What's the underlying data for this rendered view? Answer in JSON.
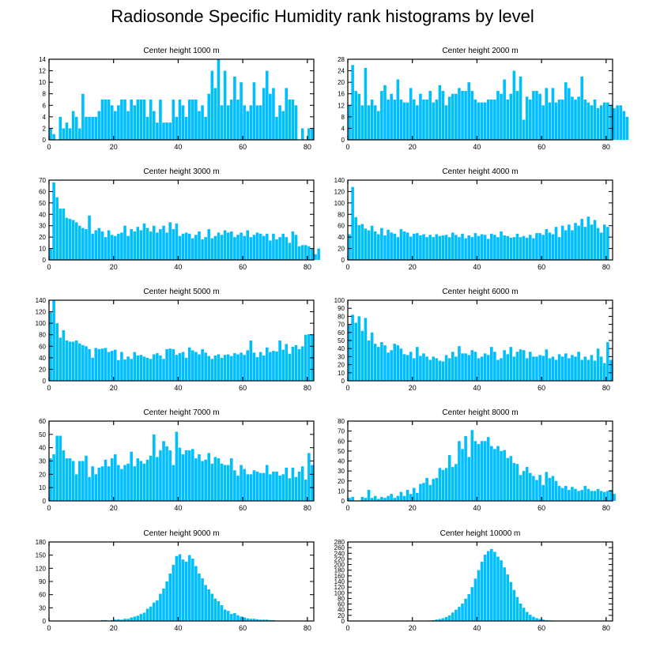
{
  "title": "Radiosonde Specific Humidity rank histograms by level",
  "colors": {
    "bar": "#00bfff",
    "axis": "#000000",
    "background": "#ffffff"
  },
  "chart_data": [
    {
      "type": "bar",
      "title": "Center height 1000 m",
      "ylim": [
        0,
        14
      ],
      "yticks": [
        0,
        2,
        4,
        6,
        8,
        10,
        12,
        14
      ],
      "xticks": [
        0,
        20,
        40,
        60,
        80
      ],
      "xlim": [
        0,
        82
      ],
      "values": [
        2,
        1,
        0,
        4,
        2,
        3,
        2,
        5,
        4,
        2,
        8,
        4,
        4,
        4,
        4,
        5,
        7,
        7,
        7,
        6,
        5,
        6,
        7,
        7,
        5,
        7,
        6,
        7,
        7,
        7,
        4,
        7,
        5,
        3,
        7,
        3,
        3,
        3,
        7,
        4,
        7,
        6,
        4,
        7,
        7,
        7,
        5,
        6,
        4,
        8,
        12,
        9,
        14,
        6,
        12,
        6,
        7,
        11,
        7,
        10,
        6,
        5,
        6,
        10,
        6,
        6,
        9,
        12,
        8,
        9,
        4,
        6,
        5,
        9,
        7,
        7,
        6,
        0,
        2,
        0,
        2,
        2
      ]
    },
    {
      "type": "bar",
      "title": "Center height 2000 m",
      "ylim": [
        0,
        28
      ],
      "yticks": [
        0,
        4,
        8,
        12,
        16,
        20,
        24,
        28
      ],
      "xticks": [
        0,
        20,
        40,
        60,
        80
      ],
      "xlim": [
        0,
        82
      ],
      "values": [
        12,
        26,
        17,
        16,
        12,
        25,
        12,
        14,
        12,
        10,
        17,
        19,
        14,
        16,
        14,
        21,
        14,
        13,
        13,
        18,
        14,
        12,
        16,
        14,
        14,
        17,
        13,
        14,
        19,
        17,
        12,
        15,
        16,
        16,
        18,
        17,
        17,
        20,
        17,
        14,
        13,
        13,
        13,
        14,
        14,
        14,
        17,
        16,
        21,
        14,
        16,
        24,
        17,
        22,
        7,
        15,
        14,
        17,
        17,
        16,
        12,
        18,
        13,
        18,
        13,
        14,
        14,
        20,
        18,
        15,
        14,
        15,
        22,
        14,
        13,
        12,
        14,
        11,
        12,
        13,
        13,
        12,
        11,
        12,
        12,
        10,
        8
      ]
    },
    {
      "type": "bar",
      "title": "Center height 3000 m",
      "ylim": [
        0,
        70
      ],
      "yticks": [
        0,
        10,
        20,
        30,
        40,
        50,
        60,
        70
      ],
      "xticks": [
        0,
        20,
        40,
        60,
        80
      ],
      "xlim": [
        0,
        82
      ],
      "values": [
        10,
        68,
        55,
        45,
        45,
        37,
        36,
        35,
        33,
        30,
        28,
        27,
        39,
        23,
        26,
        28,
        25,
        20,
        26,
        22,
        21,
        23,
        24,
        30,
        21,
        27,
        25,
        29,
        26,
        32,
        28,
        25,
        30,
        24,
        27,
        30,
        24,
        33,
        27,
        32,
        21,
        23,
        24,
        23,
        19,
        22,
        25,
        18,
        20,
        27,
        19,
        21,
        24,
        22,
        26,
        24,
        25,
        20,
        22,
        24,
        21,
        26,
        20,
        22,
        24,
        23,
        21,
        23,
        17,
        23,
        18,
        20,
        23,
        20,
        15,
        25,
        22,
        12,
        13,
        13,
        12,
        10,
        5,
        10
      ]
    },
    {
      "type": "bar",
      "title": "Center height 4000 m",
      "ylim": [
        0,
        140
      ],
      "yticks": [
        0,
        20,
        40,
        60,
        80,
        100,
        120,
        140
      ],
      "xticks": [
        0,
        20,
        40,
        60,
        80
      ],
      "xlim": [
        0,
        82
      ],
      "values": [
        45,
        128,
        75,
        61,
        63,
        55,
        52,
        60,
        50,
        45,
        56,
        43,
        53,
        48,
        46,
        40,
        54,
        50,
        48,
        41,
        46,
        47,
        43,
        45,
        40,
        44,
        40,
        45,
        42,
        43,
        44,
        40,
        48,
        44,
        40,
        46,
        38,
        43,
        40,
        47,
        42,
        45,
        44,
        37,
        46,
        44,
        40,
        50,
        43,
        42,
        39,
        40,
        46,
        40,
        42,
        39,
        44,
        38,
        47,
        47,
        44,
        54,
        48,
        45,
        58,
        40,
        60,
        52,
        62,
        52,
        65,
        60,
        72,
        58,
        76,
        62,
        70,
        56,
        48,
        62,
        58
      ]
    },
    {
      "type": "bar",
      "title": "Center height 5000 m",
      "ylim": [
        0,
        140
      ],
      "yticks": [
        0,
        20,
        40,
        60,
        80,
        100,
        120,
        140
      ],
      "xticks": [
        0,
        20,
        40,
        60,
        80
      ],
      "xlim": [
        0,
        82
      ],
      "values": [
        120,
        140,
        100,
        75,
        88,
        70,
        68,
        68,
        70,
        65,
        62,
        60,
        55,
        40,
        57,
        55,
        56,
        57,
        50,
        52,
        54,
        36,
        50,
        37,
        42,
        38,
        50,
        44,
        45,
        42,
        40,
        38,
        46,
        48,
        44,
        38,
        55,
        56,
        55,
        45,
        48,
        50,
        40,
        58,
        53,
        50,
        46,
        55,
        49,
        43,
        38,
        44,
        46,
        40,
        45,
        46,
        43,
        48,
        46,
        49,
        45,
        53,
        70,
        49,
        41,
        50,
        44,
        58,
        50,
        52,
        51,
        70,
        54,
        64,
        47,
        59,
        62,
        55,
        60,
        80,
        81,
        80
      ]
    },
    {
      "type": "bar",
      "title": "Center height 6000 m",
      "ylim": [
        0,
        100
      ],
      "yticks": [
        0,
        10,
        20,
        30,
        40,
        50,
        60,
        70,
        80,
        90,
        100
      ],
      "xticks": [
        0,
        20,
        40,
        60,
        80
      ],
      "xlim": [
        0,
        82
      ],
      "values": [
        70,
        82,
        72,
        80,
        62,
        78,
        50,
        60,
        46,
        42,
        48,
        44,
        35,
        38,
        46,
        44,
        40,
        33,
        32,
        36,
        28,
        42,
        31,
        34,
        30,
        26,
        30,
        28,
        25,
        24,
        32,
        28,
        36,
        30,
        43,
        34,
        34,
        32,
        38,
        36,
        28,
        30,
        34,
        32,
        42,
        36,
        26,
        28,
        38,
        33,
        42,
        30,
        36,
        39,
        38,
        28,
        36,
        30,
        30,
        32,
        31,
        39,
        28,
        30,
        26,
        33,
        30,
        34,
        28,
        32,
        30,
        36,
        26,
        30,
        26,
        32,
        25,
        40,
        30,
        22,
        48,
        26
      ]
    },
    {
      "type": "bar",
      "title": "Center height 7000 m",
      "ylim": [
        0,
        60
      ],
      "yticks": [
        0,
        10,
        20,
        30,
        40,
        50,
        60
      ],
      "xticks": [
        0,
        20,
        40,
        60,
        80
      ],
      "xlim": [
        0,
        82
      ],
      "values": [
        32,
        35,
        49,
        49,
        38,
        32,
        32,
        30,
        20,
        30,
        30,
        34,
        18,
        26,
        20,
        25,
        26,
        31,
        26,
        32,
        35,
        27,
        24,
        27,
        28,
        37,
        26,
        32,
        30,
        28,
        31,
        34,
        50,
        33,
        38,
        45,
        41,
        38,
        27,
        52,
        40,
        35,
        38,
        38,
        39,
        32,
        35,
        30,
        31,
        36,
        28,
        33,
        32,
        28,
        27,
        27,
        32,
        23,
        19,
        27,
        24,
        20,
        20,
        23,
        22,
        21,
        21,
        27,
        20,
        22,
        22,
        19,
        20,
        25,
        17,
        25,
        18,
        22,
        26,
        16,
        36,
        27
      ]
    },
    {
      "type": "bar",
      "title": "Center height 8000 m",
      "ylim": [
        0,
        80
      ],
      "yticks": [
        0,
        10,
        20,
        30,
        40,
        50,
        60,
        70,
        80
      ],
      "xticks": [
        0,
        20,
        40,
        60,
        80
      ],
      "xlim": [
        0,
        82
      ],
      "values": [
        3,
        4,
        0,
        0,
        4,
        3,
        11,
        3,
        5,
        2,
        4,
        3,
        5,
        7,
        3,
        5,
        9,
        5,
        11,
        7,
        13,
        8,
        17,
        18,
        23,
        16,
        22,
        23,
        33,
        31,
        33,
        46,
        34,
        37,
        60,
        52,
        65,
        44,
        71,
        60,
        57,
        60,
        60,
        64,
        55,
        52,
        55,
        50,
        51,
        43,
        45,
        38,
        37,
        26,
        30,
        34,
        28,
        25,
        21,
        26,
        16,
        29,
        23,
        25,
        20,
        15,
        13,
        15,
        11,
        14,
        12,
        10,
        11,
        15,
        12,
        10,
        10,
        12,
        10,
        9,
        10,
        11,
        7
      ]
    },
    {
      "type": "bar",
      "title": "Center height 9000 m",
      "ylim": [
        0,
        180
      ],
      "yticks": [
        0,
        30,
        60,
        90,
        120,
        150,
        180
      ],
      "xticks": [
        0,
        20,
        40,
        60,
        80
      ],
      "xlim": [
        0,
        82
      ],
      "values": [
        0,
        0,
        0,
        0,
        0,
        0,
        0,
        0,
        0,
        0,
        0,
        0,
        1,
        1,
        1,
        1,
        2,
        2,
        1,
        2,
        3,
        4,
        3,
        5,
        5,
        8,
        10,
        12,
        16,
        19,
        28,
        33,
        42,
        47,
        62,
        74,
        90,
        108,
        128,
        148,
        152,
        140,
        135,
        150,
        142,
        125,
        108,
        97,
        82,
        72,
        62,
        51,
        45,
        36,
        26,
        23,
        16,
        18,
        13,
        10,
        8,
        6,
        5,
        5,
        4,
        3,
        3,
        3,
        2,
        2,
        1,
        1,
        1,
        1,
        1,
        0,
        0,
        0,
        0,
        0,
        0,
        0
      ]
    },
    {
      "type": "bar",
      "title": "Center height 10000 m",
      "ylim": [
        0,
        280
      ],
      "yticks": [
        0,
        20,
        40,
        60,
        80,
        100,
        120,
        140,
        160,
        180,
        200,
        220,
        240,
        260,
        280
      ],
      "xticks": [
        0,
        20,
        40,
        60,
        80
      ],
      "xlim": [
        0,
        82
      ],
      "values": [
        0,
        0,
        0,
        0,
        0,
        0,
        0,
        0,
        0,
        0,
        0,
        0,
        0,
        0,
        0,
        0,
        0,
        0,
        0,
        0,
        0,
        0,
        0,
        0,
        1,
        2,
        3,
        5,
        7,
        10,
        14,
        20,
        30,
        40,
        50,
        62,
        79,
        95,
        120,
        150,
        180,
        210,
        235,
        248,
        255,
        245,
        228,
        215,
        190,
        165,
        138,
        110,
        85,
        62,
        47,
        32,
        22,
        15,
        10,
        7,
        5,
        3,
        2,
        2,
        1,
        1,
        1,
        0,
        0,
        0,
        0,
        0,
        0,
        0,
        0,
        0,
        0,
        0,
        0,
        0,
        0,
        0
      ]
    }
  ]
}
